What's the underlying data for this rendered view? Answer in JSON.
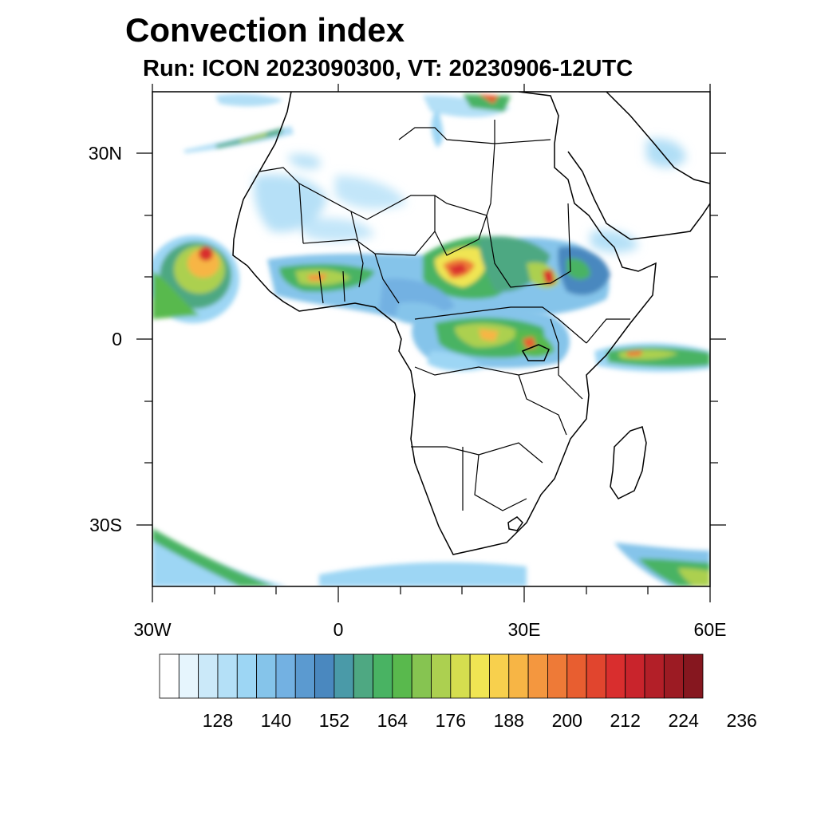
{
  "header": {
    "title": "Convection index",
    "subtitle": "Run: ICON 2023090300,  VT: 20230906-12UTC"
  },
  "axes": {
    "lat_labels": [
      "30N",
      "0",
      "30S"
    ],
    "lon_labels": [
      "30W",
      "0",
      "30E",
      "60E"
    ]
  },
  "colorbar": {
    "tick_labels": [
      "128",
      "140",
      "152",
      "164",
      "176",
      "188",
      "200",
      "212",
      "224",
      "236"
    ],
    "colors": [
      "#ffffff",
      "#e6f5fd",
      "#cbe9f9",
      "#b4e0f7",
      "#9dd6f4",
      "#85c4ea",
      "#73b1e2",
      "#5b9ad0",
      "#4a88bf",
      "#4a9aa8",
      "#4ea882",
      "#49b363",
      "#59b94d",
      "#86c451",
      "#acd050",
      "#d5de4f",
      "#f0e553",
      "#f8d04d",
      "#f7b545",
      "#f4973f",
      "#ee7a37",
      "#e85e30",
      "#e1452e",
      "#d92e2e",
      "#c9242c",
      "#b31f28",
      "#9c1b23",
      "#86171f"
    ]
  },
  "chart_data": {
    "type": "heatmap",
    "title": "Convection index",
    "subtitle": "Run: ICON 2023090300,  VT: 20230906-12UTC",
    "field": "Convection index",
    "model_run": "ICON 2023090300",
    "valid_time": "20230906-12UTC",
    "lon_range": [
      -30,
      60
    ],
    "lat_range": [
      -40,
      40
    ],
    "xticks": [
      "30W",
      "0",
      "30E",
      "60E"
    ],
    "yticks": [
      "30N",
      "0",
      "30S"
    ],
    "levels": [
      128,
      140,
      152,
      164,
      176,
      188,
      200,
      212,
      224,
      236
    ]
  }
}
